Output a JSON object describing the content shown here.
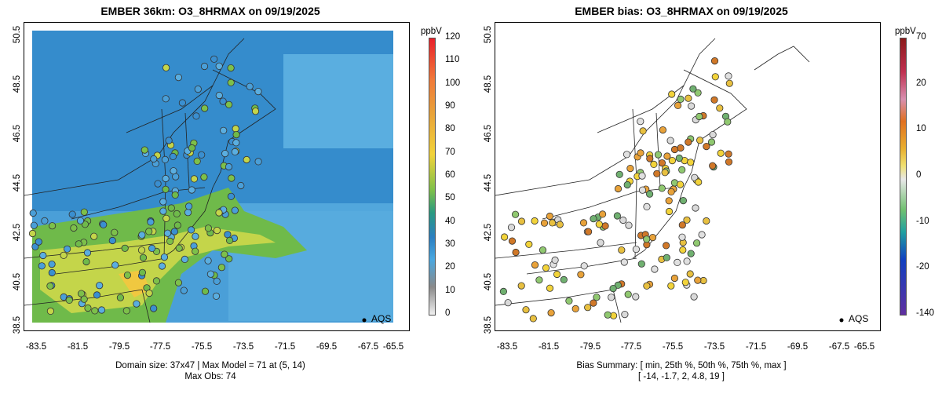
{
  "left": {
    "title": "EMBER 36km: O3_8HRMAX on 09/19/2025",
    "unit": "ppbV",
    "cbar_ticks": [
      "120",
      "110",
      "100",
      "90",
      "80",
      "70",
      "60",
      "50",
      "40",
      "30",
      "20",
      "10",
      "0"
    ],
    "footer_line1": "Domain size: 37x47 | Max Model = 71 at (5, 14)",
    "footer_line2": "Max Obs: 74",
    "legend": "AQS",
    "colors": {
      "high": "#e8202a",
      "mid": "#f2d33a",
      "green": "#4caa4c",
      "blue": "#2b7fc1",
      "low": "#d9d9d9"
    }
  },
  "right": {
    "title": "EMBER bias: O3_8HRMAX on 09/19/2025",
    "unit": "ppbV",
    "cbar_ticks": [
      "70",
      "20",
      "10",
      "0",
      "-10",
      "-20",
      "-140"
    ],
    "footer_line1": "Bias Summary: [ min, 25th %, 50th %, 75th %, max ]",
    "footer_line2": "[ -14,   -1.7,   2,   4.8,   19 ]",
    "legend": "AQS"
  },
  "axes": {
    "x_ticks": [
      "-83.5",
      "-81.5",
      "-79.5",
      "-77.5",
      "-75.5",
      "-73.5",
      "-71.5",
      "-69.5",
      "-67.5",
      "-65.5"
    ],
    "y_ticks": [
      "50.5",
      "48.5",
      "46.5",
      "44.5",
      "42.5",
      "40.5",
      "38.5"
    ]
  }
}
